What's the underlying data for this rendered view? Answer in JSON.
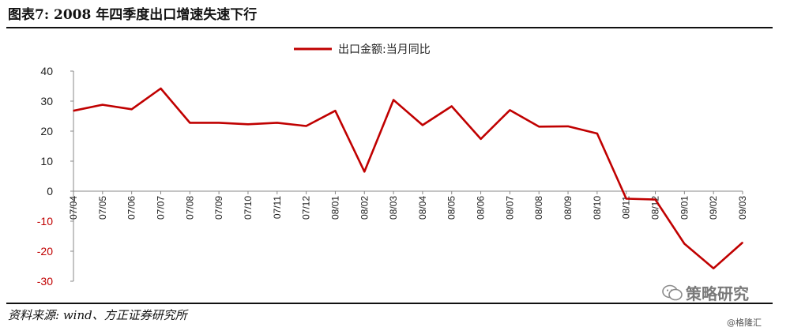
{
  "header": {
    "title": "图表7:   2008 年四季度出口增速失速下行"
  },
  "footer": {
    "source": "资料来源: wind、方正证券研究所"
  },
  "watermark": {
    "brand": "策略研究",
    "sub": "@格隆汇",
    "icon": "wechat-bubble-icon"
  },
  "colors": {
    "series": "#c00000",
    "axis": "#888888",
    "negative_tick": "#c00000",
    "positive_tick": "#222222"
  },
  "chart_data": {
    "type": "line",
    "title": "",
    "xlabel": "",
    "ylabel": "",
    "ylim": [
      -30,
      40
    ],
    "yticks": [
      40,
      30,
      20,
      10,
      0,
      -10,
      -20,
      -30
    ],
    "grid": false,
    "legend_position": "top-center",
    "categories": [
      "07/04",
      "07/05",
      "07/06",
      "07/07",
      "07/08",
      "07/09",
      "07/10",
      "07/11",
      "07/12",
      "08/01",
      "08/02",
      "08/03",
      "08/04",
      "08/05",
      "08/06",
      "08/07",
      "08/08",
      "08/09",
      "08/10",
      "08/11",
      "08/12",
      "09/01",
      "09/02",
      "09/03"
    ],
    "series": [
      {
        "name": "出口金额:当月同比",
        "values": [
          26.8,
          28.8,
          27.3,
          34.2,
          22.8,
          22.8,
          22.3,
          22.8,
          21.7,
          26.8,
          6.5,
          30.4,
          22.0,
          28.3,
          17.4,
          27.0,
          21.5,
          21.6,
          19.2,
          -2.5,
          -2.8,
          -17.5,
          -25.7,
          -17.1
        ]
      }
    ]
  }
}
